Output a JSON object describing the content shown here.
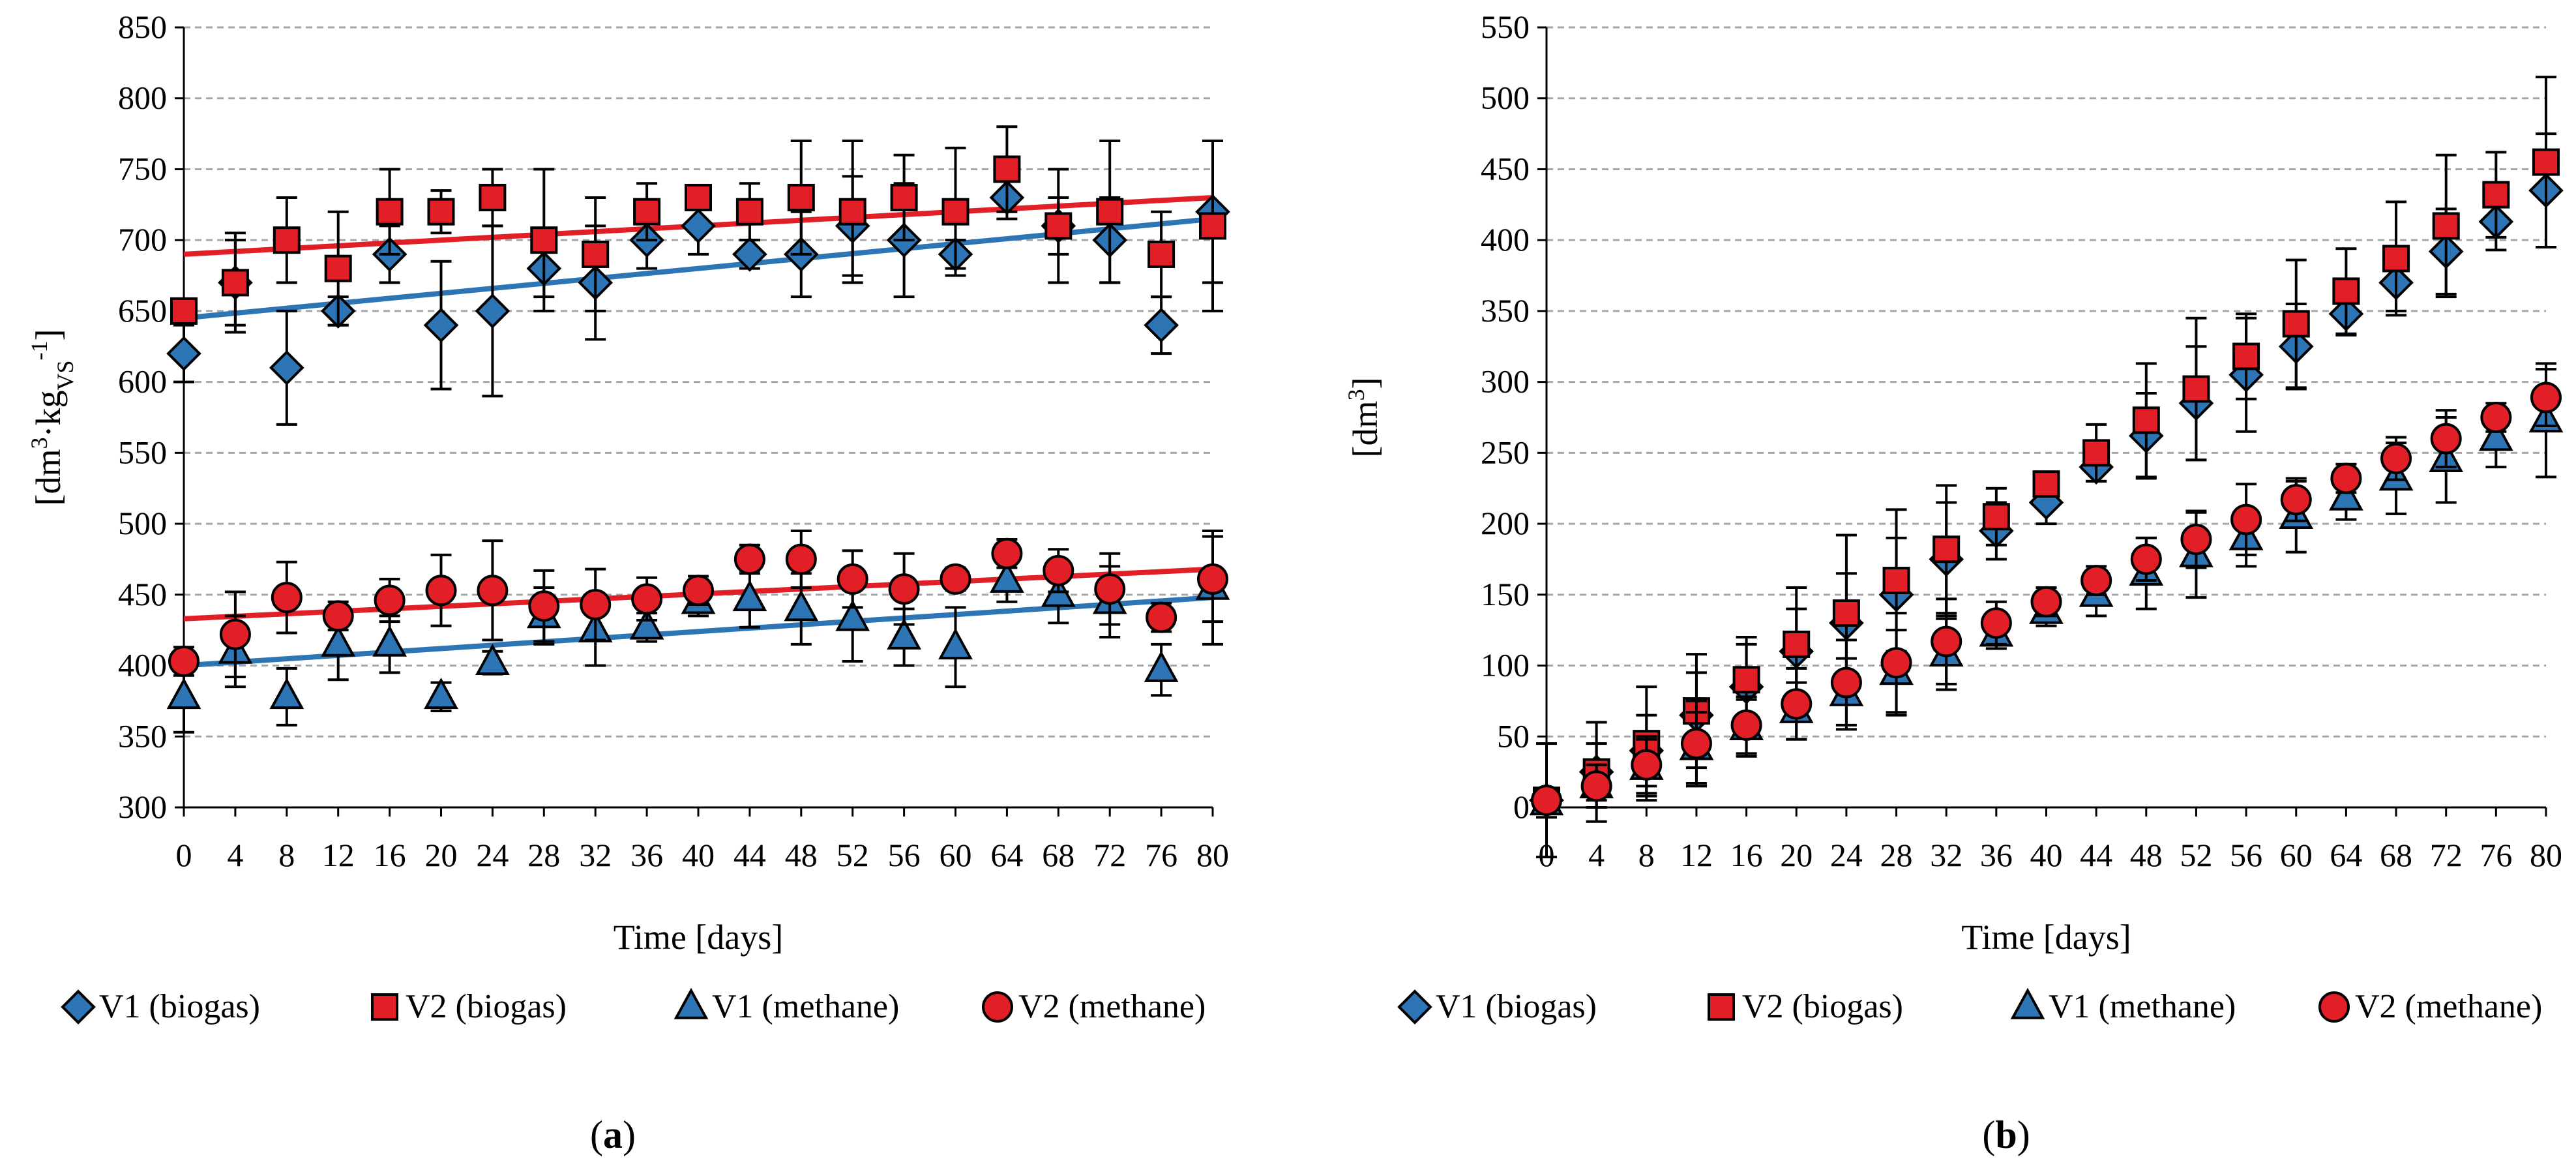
{
  "chart_data": [
    {
      "type": "scatter",
      "panel_label": "(a)",
      "panel_letter": "a",
      "xlabel": "Time [days]",
      "ylabel": "[dm3·kgVS-1]",
      "ylabel_parts": {
        "base": "[dm",
        "sup1": "3",
        "mid": "·kg",
        "sub": "VS",
        "sup2": "-1",
        "end": "]"
      },
      "xlim": [
        0,
        80
      ],
      "ylim": [
        300,
        850
      ],
      "x_ticks": [
        0,
        4,
        8,
        12,
        16,
        20,
        24,
        28,
        32,
        36,
        40,
        44,
        48,
        52,
        56,
        60,
        64,
        68,
        72,
        76,
        80
      ],
      "y_ticks": [
        300,
        350,
        400,
        450,
        500,
        550,
        600,
        650,
        700,
        750,
        800,
        850
      ],
      "grid": "horizontal",
      "legend_position": "bottom",
      "x": [
        0,
        4,
        8,
        12,
        16,
        20,
        24,
        28,
        32,
        36,
        40,
        44,
        48,
        52,
        56,
        60,
        64,
        68,
        72,
        76,
        80
      ],
      "series": [
        {
          "name": "V1 (biogas)",
          "marker": "diamond",
          "color": "#2E75B6",
          "values": [
            620,
            670,
            610,
            650,
            690,
            640,
            650,
            680,
            670,
            700,
            710,
            690,
            690,
            710,
            700,
            690,
            730,
            710,
            700,
            640,
            720
          ],
          "errors": [
            20,
            30,
            40,
            10,
            20,
            45,
            60,
            20,
            40,
            20,
            20,
            10,
            30,
            35,
            40,
            10,
            15,
            20,
            30,
            20,
            50
          ],
          "trendline": {
            "start": 645,
            "end": 715,
            "color": "#2E75B6"
          }
        },
        {
          "name": "V2 (biogas)",
          "marker": "square",
          "color": "#E21F26",
          "values": [
            650,
            670,
            700,
            680,
            720,
            720,
            730,
            700,
            690,
            720,
            730,
            720,
            730,
            720,
            730,
            720,
            750,
            710,
            720,
            690,
            710
          ],
          "errors": [
            8,
            35,
            30,
            40,
            30,
            15,
            20,
            50,
            40,
            20,
            8,
            20,
            40,
            50,
            30,
            45,
            30,
            40,
            50,
            30,
            60
          ],
          "trendline": {
            "start": 690,
            "end": 730,
            "color": "#E21F26"
          }
        },
        {
          "name": "V1 (methane)",
          "marker": "triangle",
          "color": "#2E75B6",
          "values": [
            378,
            410,
            378,
            415,
            415,
            378,
            402,
            435,
            425,
            427,
            445,
            447,
            440,
            433,
            420,
            413,
            460,
            450,
            445,
            397,
            455
          ],
          "errors": [
            25,
            25,
            20,
            25,
            20,
            10,
            8,
            20,
            25,
            10,
            10,
            20,
            25,
            30,
            20,
            28,
            15,
            20,
            25,
            18,
            40
          ],
          "trendline": {
            "start": 400,
            "end": 448,
            "color": "#2E75B6"
          }
        },
        {
          "name": "V2 (methane)",
          "marker": "circle",
          "color": "#E21F26",
          "values": [
            403,
            422,
            448,
            435,
            446,
            453,
            453,
            442,
            443,
            447,
            453,
            475,
            475,
            461,
            454,
            461,
            479,
            467,
            454,
            434,
            461
          ],
          "errors": [
            10,
            30,
            25,
            10,
            15,
            25,
            35,
            25,
            25,
            15,
            10,
            10,
            20,
            20,
            25,
            8,
            10,
            15,
            25,
            10,
            30
          ],
          "trendline": {
            "start": 433,
            "end": 468,
            "color": "#E21F26"
          }
        }
      ]
    },
    {
      "type": "scatter",
      "panel_label": "(b)",
      "panel_letter": "b",
      "xlabel": "Time [days]",
      "ylabel": "[dm3]",
      "ylabel_parts": {
        "base": "[dm",
        "sup1": "3",
        "end": "]"
      },
      "xlim": [
        0,
        80
      ],
      "ylim": [
        0,
        550
      ],
      "x_ticks": [
        0,
        4,
        8,
        12,
        16,
        20,
        24,
        28,
        32,
        36,
        40,
        44,
        48,
        52,
        56,
        60,
        64,
        68,
        72,
        76,
        80
      ],
      "y_ticks": [
        0,
        50,
        100,
        150,
        200,
        250,
        300,
        350,
        400,
        450,
        500,
        550
      ],
      "grid": "horizontal",
      "legend_position": "bottom",
      "x": [
        0,
        4,
        8,
        12,
        16,
        20,
        24,
        28,
        32,
        36,
        40,
        44,
        48,
        52,
        56,
        60,
        64,
        68,
        72,
        76,
        80
      ],
      "series": [
        {
          "name": "V1 (biogas)",
          "marker": "diamond",
          "color": "#2E75B6",
          "values": [
            5,
            25,
            40,
            65,
            85,
            110,
            130,
            150,
            175,
            195,
            215,
            240,
            262,
            285,
            305,
            325,
            348,
            370,
            392,
            413,
            435
          ],
          "errors": [
            5,
            20,
            25,
            30,
            30,
            30,
            35,
            40,
            40,
            20,
            15,
            10,
            30,
            40,
            40,
            30,
            15,
            20,
            30,
            20,
            40
          ]
        },
        {
          "name": "V2 (biogas)",
          "marker": "square",
          "color": "#E21F26",
          "values": [
            5,
            25,
            45,
            68,
            90,
            115,
            137,
            160,
            182,
            205,
            228,
            250,
            273,
            295,
            318,
            341,
            364,
            387,
            410,
            432,
            455
          ],
          "errors": [
            40,
            35,
            40,
            40,
            30,
            40,
            55,
            50,
            45,
            20,
            8,
            20,
            40,
            50,
            30,
            45,
            30,
            40,
            50,
            30,
            60
          ]
        },
        {
          "name": "V1 (methane)",
          "marker": "triangle",
          "color": "#2E75B6",
          "values": [
            3,
            15,
            28,
            42,
            56,
            68,
            80,
            95,
            108,
            122,
            138,
            150,
            165,
            178,
            190,
            205,
            218,
            232,
            245,
            260,
            273
          ],
          "errors": [
            10,
            15,
            20,
            25,
            20,
            20,
            25,
            30,
            25,
            10,
            10,
            15,
            25,
            30,
            20,
            25,
            15,
            25,
            30,
            20,
            40
          ]
        },
        {
          "name": "V2 (methane)",
          "marker": "circle",
          "color": "#E21F26",
          "values": [
            5,
            15,
            30,
            45,
            58,
            73,
            88,
            102,
            117,
            130,
            145,
            160,
            175,
            189,
            203,
            217,
            232,
            246,
            260,
            275,
            289
          ],
          "errors": [
            5,
            15,
            20,
            30,
            20,
            25,
            30,
            35,
            30,
            15,
            10,
            10,
            15,
            20,
            25,
            15,
            10,
            15,
            20,
            10,
            20
          ]
        }
      ]
    }
  ]
}
